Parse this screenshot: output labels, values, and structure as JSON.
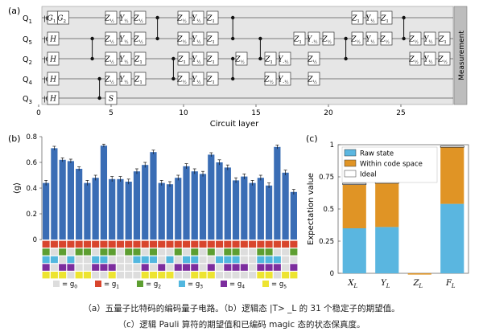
{
  "caption": {
    "line1": "（a）五量子比特码的编码量子电路。（b）逻辑态 |T> _L 的 31 个稳定子的期望值。",
    "line2": "（c）逻辑 Pauli 算符的期望值和已编码 magic 态的状态保真度。"
  },
  "chart_data": [
    {
      "panel": "(a)",
      "type": "diagram",
      "xlabel": "Circuit layer",
      "xticks": [
        0,
        5,
        10,
        15,
        20,
        25
      ],
      "side_label": "Measurement",
      "qubits": [
        "Q1",
        "Q5",
        "Q2",
        "Q4",
        "Q3"
      ],
      "initial_state": "|0⟩",
      "first_gates": [
        "G1",
        "H",
        "H",
        "H",
        "H"
      ],
      "gates": [
        {
          "q": 0,
          "l": 1.7,
          "t": "G2"
        },
        {
          "q": 0,
          "l": 5,
          "t": "Z½"
        },
        {
          "q": 0,
          "l": 6,
          "t": "Y½"
        },
        {
          "q": 0,
          "l": 7,
          "t": "Z½"
        },
        {
          "q": 1,
          "l": 5,
          "t": "Z½"
        },
        {
          "q": 1,
          "l": 6,
          "t": "Y½"
        },
        {
          "q": 1,
          "l": 7,
          "t": "Z½"
        },
        {
          "q": 2,
          "l": 5,
          "t": "Z½"
        },
        {
          "q": 2,
          "l": 6,
          "t": "Y½"
        },
        {
          "q": 2,
          "l": 7,
          "t": "Z1"
        },
        {
          "q": 3,
          "l": 5,
          "t": "Z½"
        },
        {
          "q": 3,
          "l": 6,
          "t": "Y½"
        },
        {
          "q": 3,
          "l": 7,
          "t": "Z1"
        },
        {
          "q": 4,
          "l": 5,
          "t": "S"
        },
        {
          "q": 0,
          "l": 10,
          "t": "Z½"
        },
        {
          "q": 0,
          "l": 11,
          "t": "Y½"
        },
        {
          "q": 0,
          "l": 12,
          "t": "Z1"
        },
        {
          "q": 1,
          "l": 10,
          "t": "Z½"
        },
        {
          "q": 1,
          "l": 11,
          "t": "Y½"
        },
        {
          "q": 1,
          "l": 12,
          "t": "Z1"
        },
        {
          "q": 2,
          "l": 10,
          "t": "Z1"
        },
        {
          "q": 2,
          "l": 11,
          "t": "Y½"
        },
        {
          "q": 2,
          "l": 12,
          "t": "Z1"
        },
        {
          "q": 3,
          "l": 10,
          "t": "Z½"
        },
        {
          "q": 3,
          "l": 11,
          "t": "Y½"
        },
        {
          "q": 3,
          "l": 12,
          "t": "Z1"
        },
        {
          "q": 2,
          "l": 14,
          "t": "Z½"
        },
        {
          "q": 2,
          "l": 16,
          "t": "Z1"
        },
        {
          "q": 2,
          "l": 17,
          "t": "Y-½"
        },
        {
          "q": 3,
          "l": 16,
          "t": "Z½"
        },
        {
          "q": 3,
          "l": 17,
          "t": "Y-½"
        },
        {
          "q": 2,
          "l": 19,
          "t": "Z½"
        },
        {
          "q": 3,
          "l": 19,
          "t": "Z½"
        },
        {
          "q": 1,
          "l": 18,
          "t": "Z1"
        },
        {
          "q": 1,
          "l": 19,
          "t": "Y-½"
        },
        {
          "q": 1,
          "l": 20,
          "t": "Z½"
        },
        {
          "q": 0,
          "l": 22,
          "t": "Z1"
        },
        {
          "q": 0,
          "l": 23,
          "t": "Y½"
        },
        {
          "q": 0,
          "l": 24,
          "t": "Z1"
        },
        {
          "q": 1,
          "l": 22,
          "t": "Z½"
        },
        {
          "q": 1,
          "l": 23,
          "t": "Y½"
        },
        {
          "q": 1,
          "l": 24,
          "t": "Z½"
        },
        {
          "q": 1,
          "l": 26,
          "t": "Z½"
        },
        {
          "q": 1,
          "l": 27,
          "t": "Y½"
        },
        {
          "q": 1,
          "l": 28,
          "t": "Z1"
        },
        {
          "q": 2,
          "l": 26,
          "t": "Z½"
        },
        {
          "q": 2,
          "l": 27,
          "t": "Y½"
        },
        {
          "q": 2,
          "l": 28,
          "t": "Z½"
        }
      ],
      "cz": [
        {
          "l": 3.7,
          "q": [
            1,
            2
          ]
        },
        {
          "l": 4.2,
          "q": [
            3,
            4
          ]
        },
        {
          "l": 8.2,
          "q": [
            0,
            1
          ]
        },
        {
          "l": 9.3,
          "q": [
            2,
            3
          ]
        },
        {
          "l": 13.4,
          "q": [
            0,
            1
          ]
        },
        {
          "l": 13.4,
          "q": [
            2,
            3
          ]
        },
        {
          "l": 15.3,
          "q": [
            1,
            2
          ]
        },
        {
          "l": 21.2,
          "q": [
            1,
            2
          ]
        },
        {
          "l": 25.2,
          "q": [
            0,
            1
          ]
        }
      ]
    },
    {
      "panel": "(b)",
      "type": "bar",
      "ylabel": "⟨g⟩",
      "ylim": [
        0,
        0.8
      ],
      "yticks": [
        0,
        0.2,
        0.4,
        0.6,
        0.8
      ],
      "color": "#3a6db5",
      "values": [
        0.44,
        0.71,
        0.62,
        0.61,
        0.55,
        0.44,
        0.48,
        0.73,
        0.47,
        0.47,
        0.45,
        0.53,
        0.58,
        0.68,
        0.44,
        0.43,
        0.48,
        0.57,
        0.53,
        0.51,
        0.66,
        0.6,
        0.56,
        0.46,
        0.49,
        0.44,
        0.48,
        0.42,
        0.72,
        0.52,
        0.37
      ],
      "errors": [
        0.02,
        0.015,
        0.015,
        0.015,
        0.015,
        0.02,
        0.02,
        0.012,
        0.02,
        0.02,
        0.02,
        0.02,
        0.02,
        0.015,
        0.02,
        0.02,
        0.02,
        0.02,
        0.02,
        0.02,
        0.015,
        0.02,
        0.02,
        0.02,
        0.02,
        0.02,
        0.02,
        0.02,
        0.015,
        0.02,
        0.02
      ],
      "legend": [
        {
          "label": "= g",
          "sub": "0",
          "color": "#dddddd"
        },
        {
          "label": "= g",
          "sub": "1",
          "color": "#d8452d"
        },
        {
          "label": "= g",
          "sub": "2",
          "color": "#5d9e31"
        },
        {
          "label": "= g",
          "sub": "3",
          "color": "#52b7df"
        },
        {
          "label": "= g",
          "sub": "4",
          "color": "#7c2d9e"
        },
        {
          "label": "= g",
          "sub": "5",
          "color": "#ede431"
        }
      ],
      "stabilizer_grid": [
        "1111111111111111111111111111111",
        "2020220220220200202020220022002",
        "3303003300033303033003330033300",
        "4044004440004040444040444044404",
        "5550550050005555005550000055055"
      ]
    },
    {
      "panel": "(c)",
      "type": "bar",
      "ylabel": "Expectation value",
      "ylim": [
        0,
        1
      ],
      "yticks": [
        0,
        0.25,
        0.5,
        0.75,
        1
      ],
      "categories": [
        "X",
        "Y",
        "Z",
        "F"
      ],
      "category_sub": "L",
      "series": [
        {
          "name": "Raw state",
          "color": "#5ab6e0",
          "values": [
            0.35,
            0.36,
            0.0,
            0.54
          ]
        },
        {
          "name": "Within code space",
          "color": "#e09425",
          "values": [
            0.34,
            0.34,
            -0.01,
            0.44
          ]
        },
        {
          "name": "Ideal",
          "color": "#ffffff",
          "values": [
            0.01,
            0.01,
            0.0,
            0.01
          ]
        }
      ],
      "legend_position": "top-left"
    }
  ]
}
